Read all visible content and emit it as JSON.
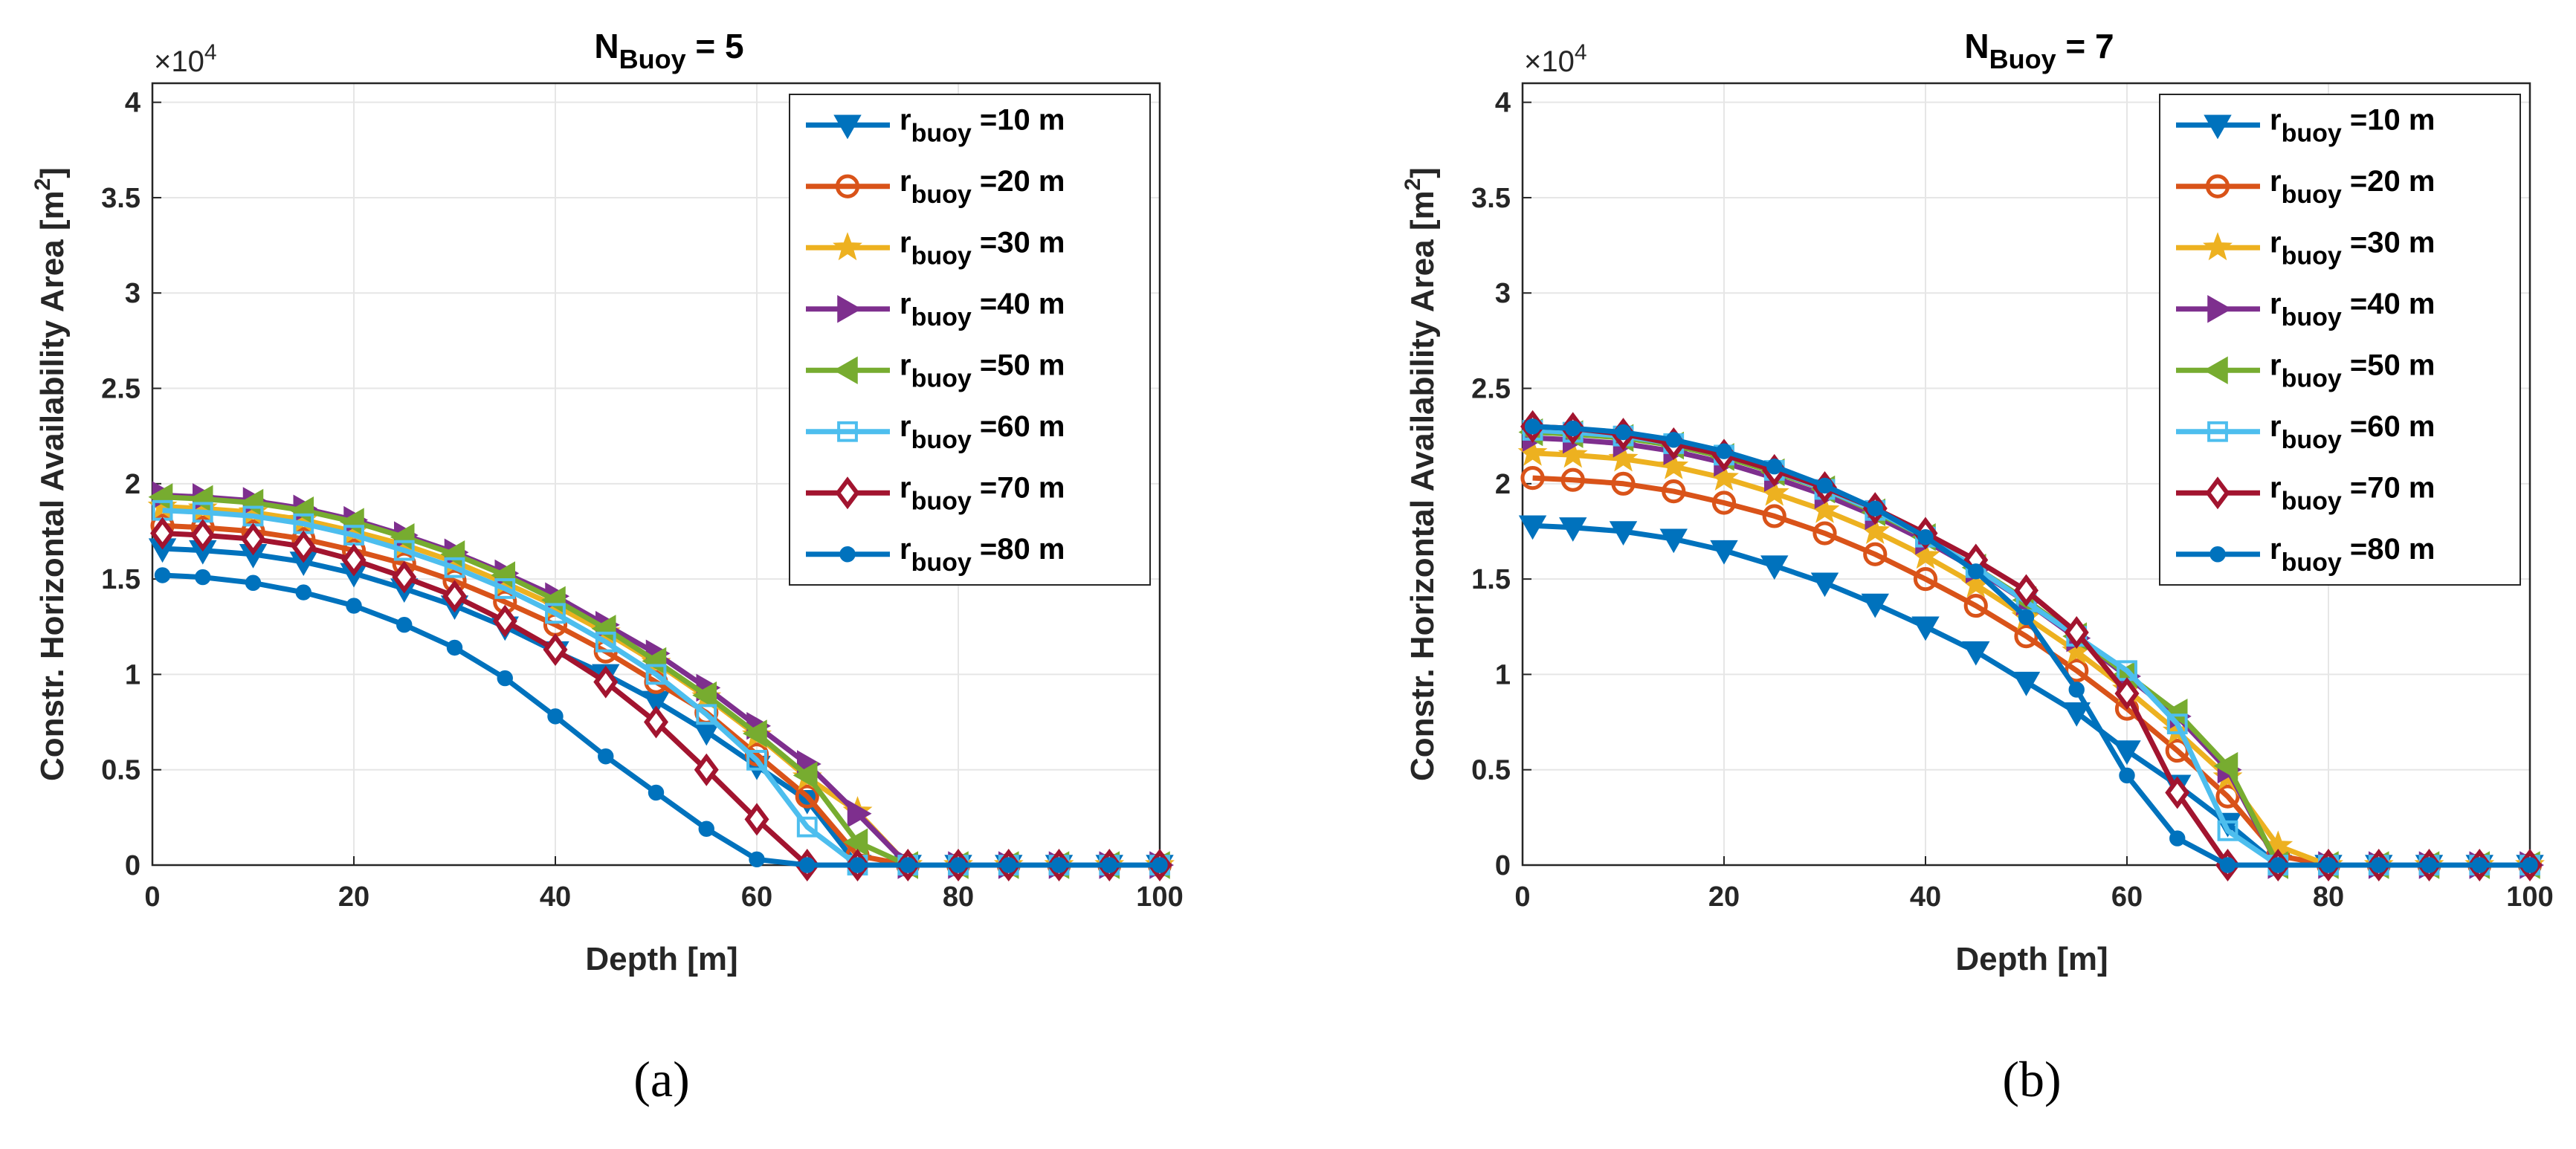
{
  "chart_data": [
    {
      "type": "line",
      "panel_label": "(a)",
      "title": "N",
      "title_sub": "Buoy",
      "title_tail": " = 5",
      "xlabel": "Depth [m]",
      "ylabel": "Constr. Horizontal Availability Area [m",
      "ylabel_sup": "2",
      "ylabel_tail": "]",
      "exponent_prefix": "×10",
      "exponent_power": "4",
      "xlim": [
        0,
        100
      ],
      "ylim": [
        0,
        4.1
      ],
      "xticks": [
        "0",
        "20",
        "40",
        "60",
        "80",
        "100"
      ],
      "yticks": [
        "0",
        "0.5",
        "1",
        "1.5",
        "2",
        "2.5",
        "3",
        "3.5",
        "4"
      ],
      "grid": true,
      "legend_position": "top-right",
      "x": [
        1,
        5,
        10,
        15,
        20,
        25,
        30,
        35,
        40,
        45,
        50,
        55,
        60,
        65,
        70,
        75,
        80,
        85,
        90,
        95,
        100
      ],
      "series": [
        {
          "name": "r",
          "name_sub": "buoy",
          "name_tail": " =10 m",
          "color": "#0072BD",
          "marker": "triangle-down",
          "values": [
            1.66,
            1.65,
            1.63,
            1.59,
            1.53,
            1.45,
            1.36,
            1.25,
            1.12,
            1.0,
            0.86,
            0.7,
            0.52,
            0.34,
            0.0,
            0.0,
            0.0,
            0.0,
            0.0,
            0.0,
            0.0
          ]
        },
        {
          "name": "r",
          "name_sub": "buoy",
          "name_tail": " =20 m",
          "color": "#D95319",
          "marker": "circle",
          "values": [
            1.78,
            1.77,
            1.75,
            1.71,
            1.65,
            1.58,
            1.49,
            1.38,
            1.26,
            1.12,
            0.96,
            0.8,
            0.58,
            0.36,
            0.05,
            0.0,
            0.0,
            0.0,
            0.0,
            0.0,
            0.0
          ]
        },
        {
          "name": "r",
          "name_sub": "buoy",
          "name_tail": " =30 m",
          "color": "#EDB120",
          "marker": "star",
          "values": [
            1.88,
            1.87,
            1.85,
            1.81,
            1.75,
            1.68,
            1.59,
            1.48,
            1.36,
            1.22,
            1.06,
            0.88,
            0.68,
            0.46,
            0.28,
            0.0,
            0.0,
            0.0,
            0.0,
            0.0,
            0.0
          ]
        },
        {
          "name": "r",
          "name_sub": "buoy",
          "name_tail": " =40 m",
          "color": "#7E2F8E",
          "marker": "triangle-right",
          "values": [
            1.94,
            1.93,
            1.91,
            1.87,
            1.81,
            1.73,
            1.64,
            1.53,
            1.41,
            1.26,
            1.11,
            0.93,
            0.73,
            0.53,
            0.27,
            0.0,
            0.0,
            0.0,
            0.0,
            0.0,
            0.0
          ]
        },
        {
          "name": "r",
          "name_sub": "buoy",
          "name_tail": " =50 m",
          "color": "#77AC30",
          "marker": "triangle-left",
          "values": [
            1.93,
            1.92,
            1.9,
            1.86,
            1.8,
            1.72,
            1.63,
            1.52,
            1.39,
            1.24,
            1.07,
            0.89,
            0.69,
            0.47,
            0.12,
            0.0,
            0.0,
            0.0,
            0.0,
            0.0,
            0.0
          ]
        },
        {
          "name": "r",
          "name_sub": "buoy",
          "name_tail": " =60 m",
          "color": "#4DBEEE",
          "marker": "square",
          "values": [
            1.86,
            1.85,
            1.83,
            1.79,
            1.73,
            1.65,
            1.56,
            1.45,
            1.32,
            1.17,
            1.0,
            0.79,
            0.55,
            0.2,
            0.0,
            0.0,
            0.0,
            0.0,
            0.0,
            0.0,
            0.0
          ]
        },
        {
          "name": "r",
          "name_sub": "buoy",
          "name_tail": " =70 m",
          "color": "#A2142F",
          "marker": "diamond",
          "values": [
            1.74,
            1.73,
            1.71,
            1.67,
            1.6,
            1.51,
            1.41,
            1.28,
            1.13,
            0.96,
            0.75,
            0.5,
            0.24,
            0.0,
            0.0,
            0.0,
            0.0,
            0.0,
            0.0,
            0.0,
            0.0
          ]
        },
        {
          "name": "r",
          "name_sub": "buoy",
          "name_tail": " =80 m",
          "color": "#0072BD",
          "marker": "dot",
          "values": [
            1.52,
            1.51,
            1.48,
            1.43,
            1.36,
            1.26,
            1.14,
            0.98,
            0.78,
            0.57,
            0.38,
            0.19,
            0.03,
            0.0,
            0.0,
            0.0,
            0.0,
            0.0,
            0.0,
            0.0,
            0.0
          ]
        }
      ]
    },
    {
      "type": "line",
      "panel_label": "(b)",
      "title": "N",
      "title_sub": "Buoy",
      "title_tail": " = 7",
      "xlabel": "Depth [m]",
      "ylabel": "Constr. Horizontal Availability Area [m",
      "ylabel_sup": "2",
      "ylabel_tail": "]",
      "exponent_prefix": "×10",
      "exponent_power": "4",
      "xlim": [
        0,
        100
      ],
      "ylim": [
        0,
        4.1
      ],
      "xticks": [
        "0",
        "20",
        "40",
        "60",
        "80",
        "100"
      ],
      "yticks": [
        "0",
        "0.5",
        "1",
        "1.5",
        "2",
        "2.5",
        "3",
        "3.5",
        "4"
      ],
      "grid": true,
      "legend_position": "top-right",
      "x": [
        1,
        5,
        10,
        15,
        20,
        25,
        30,
        35,
        40,
        45,
        50,
        55,
        60,
        65,
        70,
        75,
        80,
        85,
        90,
        95,
        100
      ],
      "series": [
        {
          "name": "r",
          "name_sub": "buoy",
          "name_tail": " =10 m",
          "color": "#0072BD",
          "marker": "triangle-down",
          "values": [
            1.78,
            1.77,
            1.75,
            1.71,
            1.65,
            1.57,
            1.48,
            1.37,
            1.25,
            1.12,
            0.96,
            0.8,
            0.6,
            0.42,
            0.22,
            0.0,
            0.0,
            0.0,
            0.0,
            0.0,
            0.0
          ]
        },
        {
          "name": "r",
          "name_sub": "buoy",
          "name_tail": " =20 m",
          "color": "#D95319",
          "marker": "circle",
          "values": [
            2.03,
            2.02,
            2.0,
            1.96,
            1.9,
            1.83,
            1.74,
            1.63,
            1.5,
            1.36,
            1.2,
            1.02,
            0.82,
            0.6,
            0.36,
            0.05,
            0.0,
            0.0,
            0.0,
            0.0,
            0.0
          ]
        },
        {
          "name": "r",
          "name_sub": "buoy",
          "name_tail": " =30 m",
          "color": "#EDB120",
          "marker": "star",
          "values": [
            2.16,
            2.15,
            2.13,
            2.09,
            2.03,
            1.95,
            1.86,
            1.75,
            1.62,
            1.47,
            1.3,
            1.12,
            0.92,
            0.7,
            0.46,
            0.1,
            0.0,
            0.0,
            0.0,
            0.0,
            0.0
          ]
        },
        {
          "name": "r",
          "name_sub": "buoy",
          "name_tail": " =40 m",
          "color": "#7E2F8E",
          "marker": "triangle-right",
          "values": [
            2.24,
            2.23,
            2.21,
            2.17,
            2.11,
            2.03,
            1.94,
            1.83,
            1.7,
            1.55,
            1.38,
            1.19,
            0.99,
            0.78,
            0.5,
            0.0,
            0.0,
            0.0,
            0.0,
            0.0,
            0.0
          ]
        },
        {
          "name": "r",
          "name_sub": "buoy",
          "name_tail": " =50 m",
          "color": "#77AC30",
          "marker": "triangle-left",
          "values": [
            2.27,
            2.26,
            2.24,
            2.2,
            2.14,
            2.06,
            1.97,
            1.85,
            1.72,
            1.56,
            1.39,
            1.2,
            1.0,
            0.8,
            0.52,
            0.0,
            0.0,
            0.0,
            0.0,
            0.0,
            0.0
          ]
        },
        {
          "name": "r",
          "name_sub": "buoy",
          "name_tail": " =60 m",
          "color": "#4DBEEE",
          "marker": "square",
          "values": [
            2.28,
            2.27,
            2.25,
            2.21,
            2.15,
            2.07,
            1.97,
            1.86,
            1.72,
            1.56,
            1.38,
            1.2,
            1.02,
            0.74,
            0.18,
            0.0,
            0.0,
            0.0,
            0.0,
            0.0,
            0.0
          ]
        },
        {
          "name": "r",
          "name_sub": "buoy",
          "name_tail": " =70 m",
          "color": "#A2142F",
          "marker": "diamond",
          "values": [
            2.3,
            2.29,
            2.26,
            2.21,
            2.15,
            2.07,
            1.98,
            1.87,
            1.74,
            1.6,
            1.44,
            1.22,
            0.9,
            0.38,
            0.0,
            0.0,
            0.0,
            0.0,
            0.0,
            0.0,
            0.0
          ]
        },
        {
          "name": "r",
          "name_sub": "buoy",
          "name_tail": " =80 m",
          "color": "#0072BD",
          "marker": "dot",
          "values": [
            2.3,
            2.29,
            2.27,
            2.23,
            2.17,
            2.09,
            1.99,
            1.87,
            1.72,
            1.54,
            1.3,
            0.92,
            0.47,
            0.14,
            0.0,
            0.0,
            0.0,
            0.0,
            0.0,
            0.0,
            0.0
          ]
        }
      ]
    }
  ]
}
